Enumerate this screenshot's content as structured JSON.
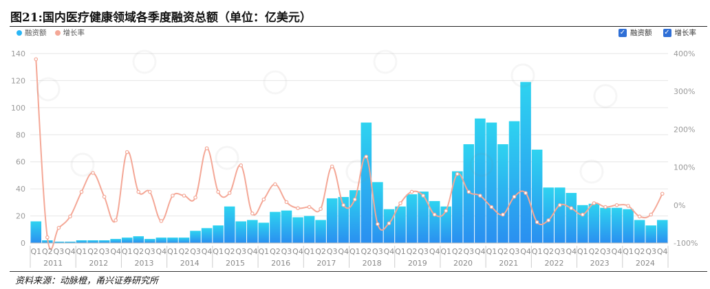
{
  "title": "图21:国内医疗健康领域各季度融资总额（单位：亿美元）",
  "source": "资料来源：动脉橙，甬兴证券研究所",
  "legend": {
    "bar_label": "融资额",
    "line_label": "增长率",
    "bar_color": "#29b6f6",
    "line_color": "#f4a796"
  },
  "checkbox_legend": {
    "bar_label": "融资额",
    "line_label": "增长率"
  },
  "chart_data": {
    "type": "bar",
    "years": [
      "2011",
      "2012",
      "2013",
      "2014",
      "2015",
      "2016",
      "2017",
      "2018",
      "2019",
      "2020",
      "2021",
      "2022",
      "2023",
      "2024"
    ],
    "quarter_labels": [
      "Q1",
      "Q2",
      "Q3",
      "Q4"
    ],
    "left_axis": {
      "ticks": [
        "0",
        "20",
        "40",
        "60",
        "80",
        "100",
        "120",
        "140"
      ],
      "min": 0,
      "max": 140
    },
    "right_axis": {
      "ticks": [
        "-100%",
        "0%",
        "100%",
        "200%",
        "300%",
        "400%"
      ],
      "min": -100,
      "max": 400
    },
    "series": [
      {
        "name": "融资额",
        "type": "bar",
        "values": [
          16,
          2,
          1,
          1,
          2,
          2,
          2,
          3,
          4,
          5,
          3,
          4,
          4,
          4,
          9,
          11,
          13,
          27,
          16,
          17,
          15,
          23,
          24,
          19,
          20,
          17,
          33,
          34,
          39,
          89,
          45,
          25,
          27,
          36,
          38,
          31,
          27,
          53,
          73,
          92,
          89,
          73,
          90,
          119,
          69,
          41,
          41,
          37,
          28,
          29,
          26,
          26,
          25,
          17,
          13,
          17
        ]
      },
      {
        "name": "增长率",
        "type": "line",
        "values": [
          385,
          -85,
          -60,
          -30,
          35,
          85,
          22,
          -40,
          140,
          35,
          35,
          -42,
          25,
          25,
          20,
          150,
          35,
          32,
          105,
          -22,
          15,
          55,
          8,
          -8,
          -5,
          -10,
          102,
          0,
          15,
          128,
          -50,
          -48,
          5,
          35,
          25,
          -25,
          -15,
          82,
          35,
          25,
          -5,
          -25,
          22,
          32,
          -45,
          -40,
          0,
          -8,
          -25,
          5,
          -5,
          0,
          -2,
          -30,
          -25,
          30
        ]
      }
    ]
  }
}
